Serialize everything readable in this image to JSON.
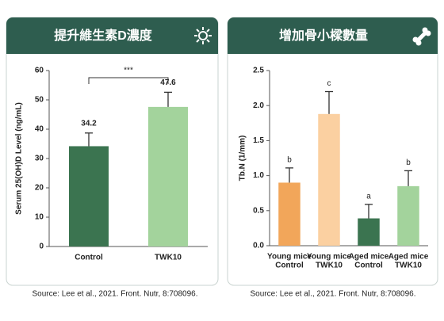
{
  "chart_data": [
    {
      "type": "bar",
      "title": "提升維生素D濃度",
      "y_label": "Serum 25(OH)D Level (ng/mL)",
      "categories": [
        [
          "Control"
        ],
        [
          "TWK10"
        ]
      ],
      "values": [
        34.2,
        47.6
      ],
      "error": [
        4.5,
        5
      ],
      "colors": [
        "#3b7450",
        "#a3d39c"
      ],
      "data_labels": true,
      "annotation": "***",
      "ylim": [
        0,
        60
      ],
      "yticks": [
        0,
        10,
        20,
        30,
        40,
        50,
        60
      ],
      "source": "Source: Lee et al., 2021. Front. Nutr, 8:708096."
    },
    {
      "type": "bar",
      "title": "增加骨小樑數量",
      "y_label": "Tb.N (1/mm)",
      "categories": [
        [
          "Young mice",
          "Control"
        ],
        [
          "Young mice",
          "TWK10"
        ],
        [
          "Aged mice",
          "Control"
        ],
        [
          "Aged mice",
          "TWK10"
        ]
      ],
      "values": [
        0.9,
        1.88,
        0.39,
        0.85
      ],
      "error": [
        0.21,
        0.32,
        0.2,
        0.22
      ],
      "colors": [
        "#f2a65a",
        "#fbd0a1",
        "#3b7450",
        "#a3d39c"
      ],
      "letters": [
        "b",
        "c",
        "a",
        "b"
      ],
      "ylim": [
        0,
        2.5
      ],
      "yticks": [
        {
          "value": 0,
          "label": "0.0"
        },
        0.5,
        {
          "value": 1,
          "label": "1.0"
        },
        1.5,
        {
          "value": 2,
          "label": "2.0"
        },
        2.5
      ],
      "source": "Source: Lee et al., 2021. Front. Nutr, 8:708096."
    }
  ]
}
